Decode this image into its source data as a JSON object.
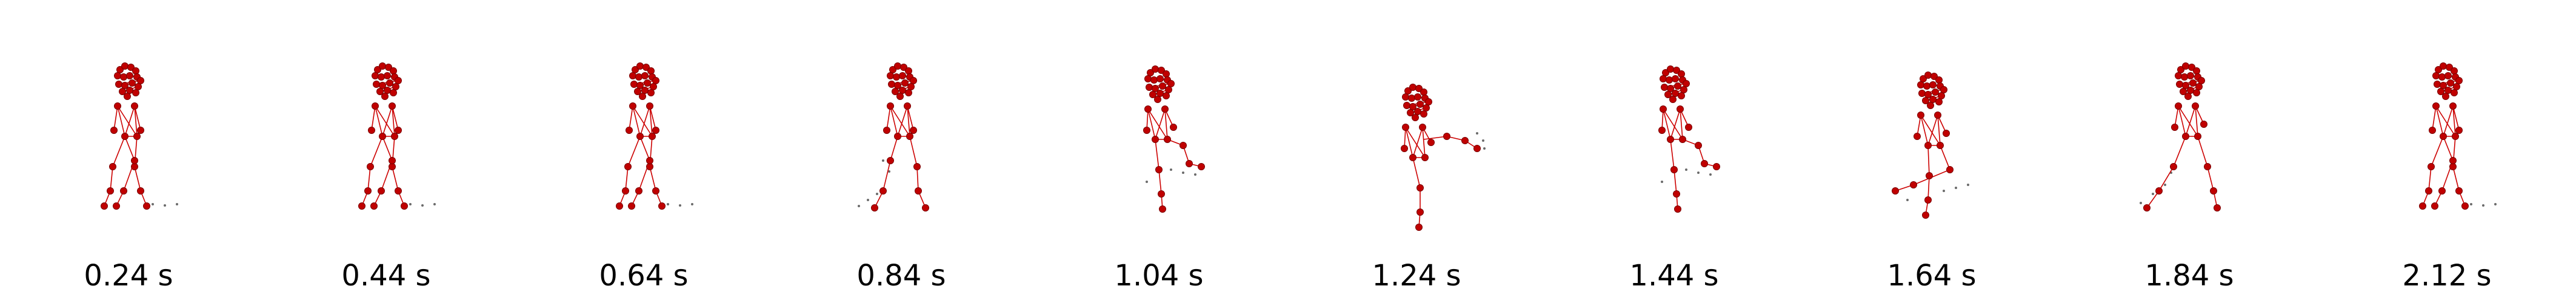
{
  "frames": [
    {
      "time_label": "0.24 s",
      "pose": "stand"
    },
    {
      "time_label": "0.44 s",
      "pose": "stand"
    },
    {
      "time_label": "0.64 s",
      "pose": "stand"
    },
    {
      "time_label": "0.84 s",
      "pose": "step"
    },
    {
      "time_label": "1.04 s",
      "pose": "knee-raise"
    },
    {
      "time_label": "1.24 s",
      "pose": "leg-extend"
    },
    {
      "time_label": "1.44 s",
      "pose": "knee-raise"
    },
    {
      "time_label": "1.64 s",
      "pose": "kick-back"
    },
    {
      "time_label": "1.84 s",
      "pose": "step-back"
    },
    {
      "time_label": "2.12 s",
      "pose": "stand"
    }
  ],
  "colors": {
    "skeleton": "#cc0000",
    "joint": "#c00000",
    "joint_edge": "#7a0000",
    "trail": "#6b6b6b"
  }
}
